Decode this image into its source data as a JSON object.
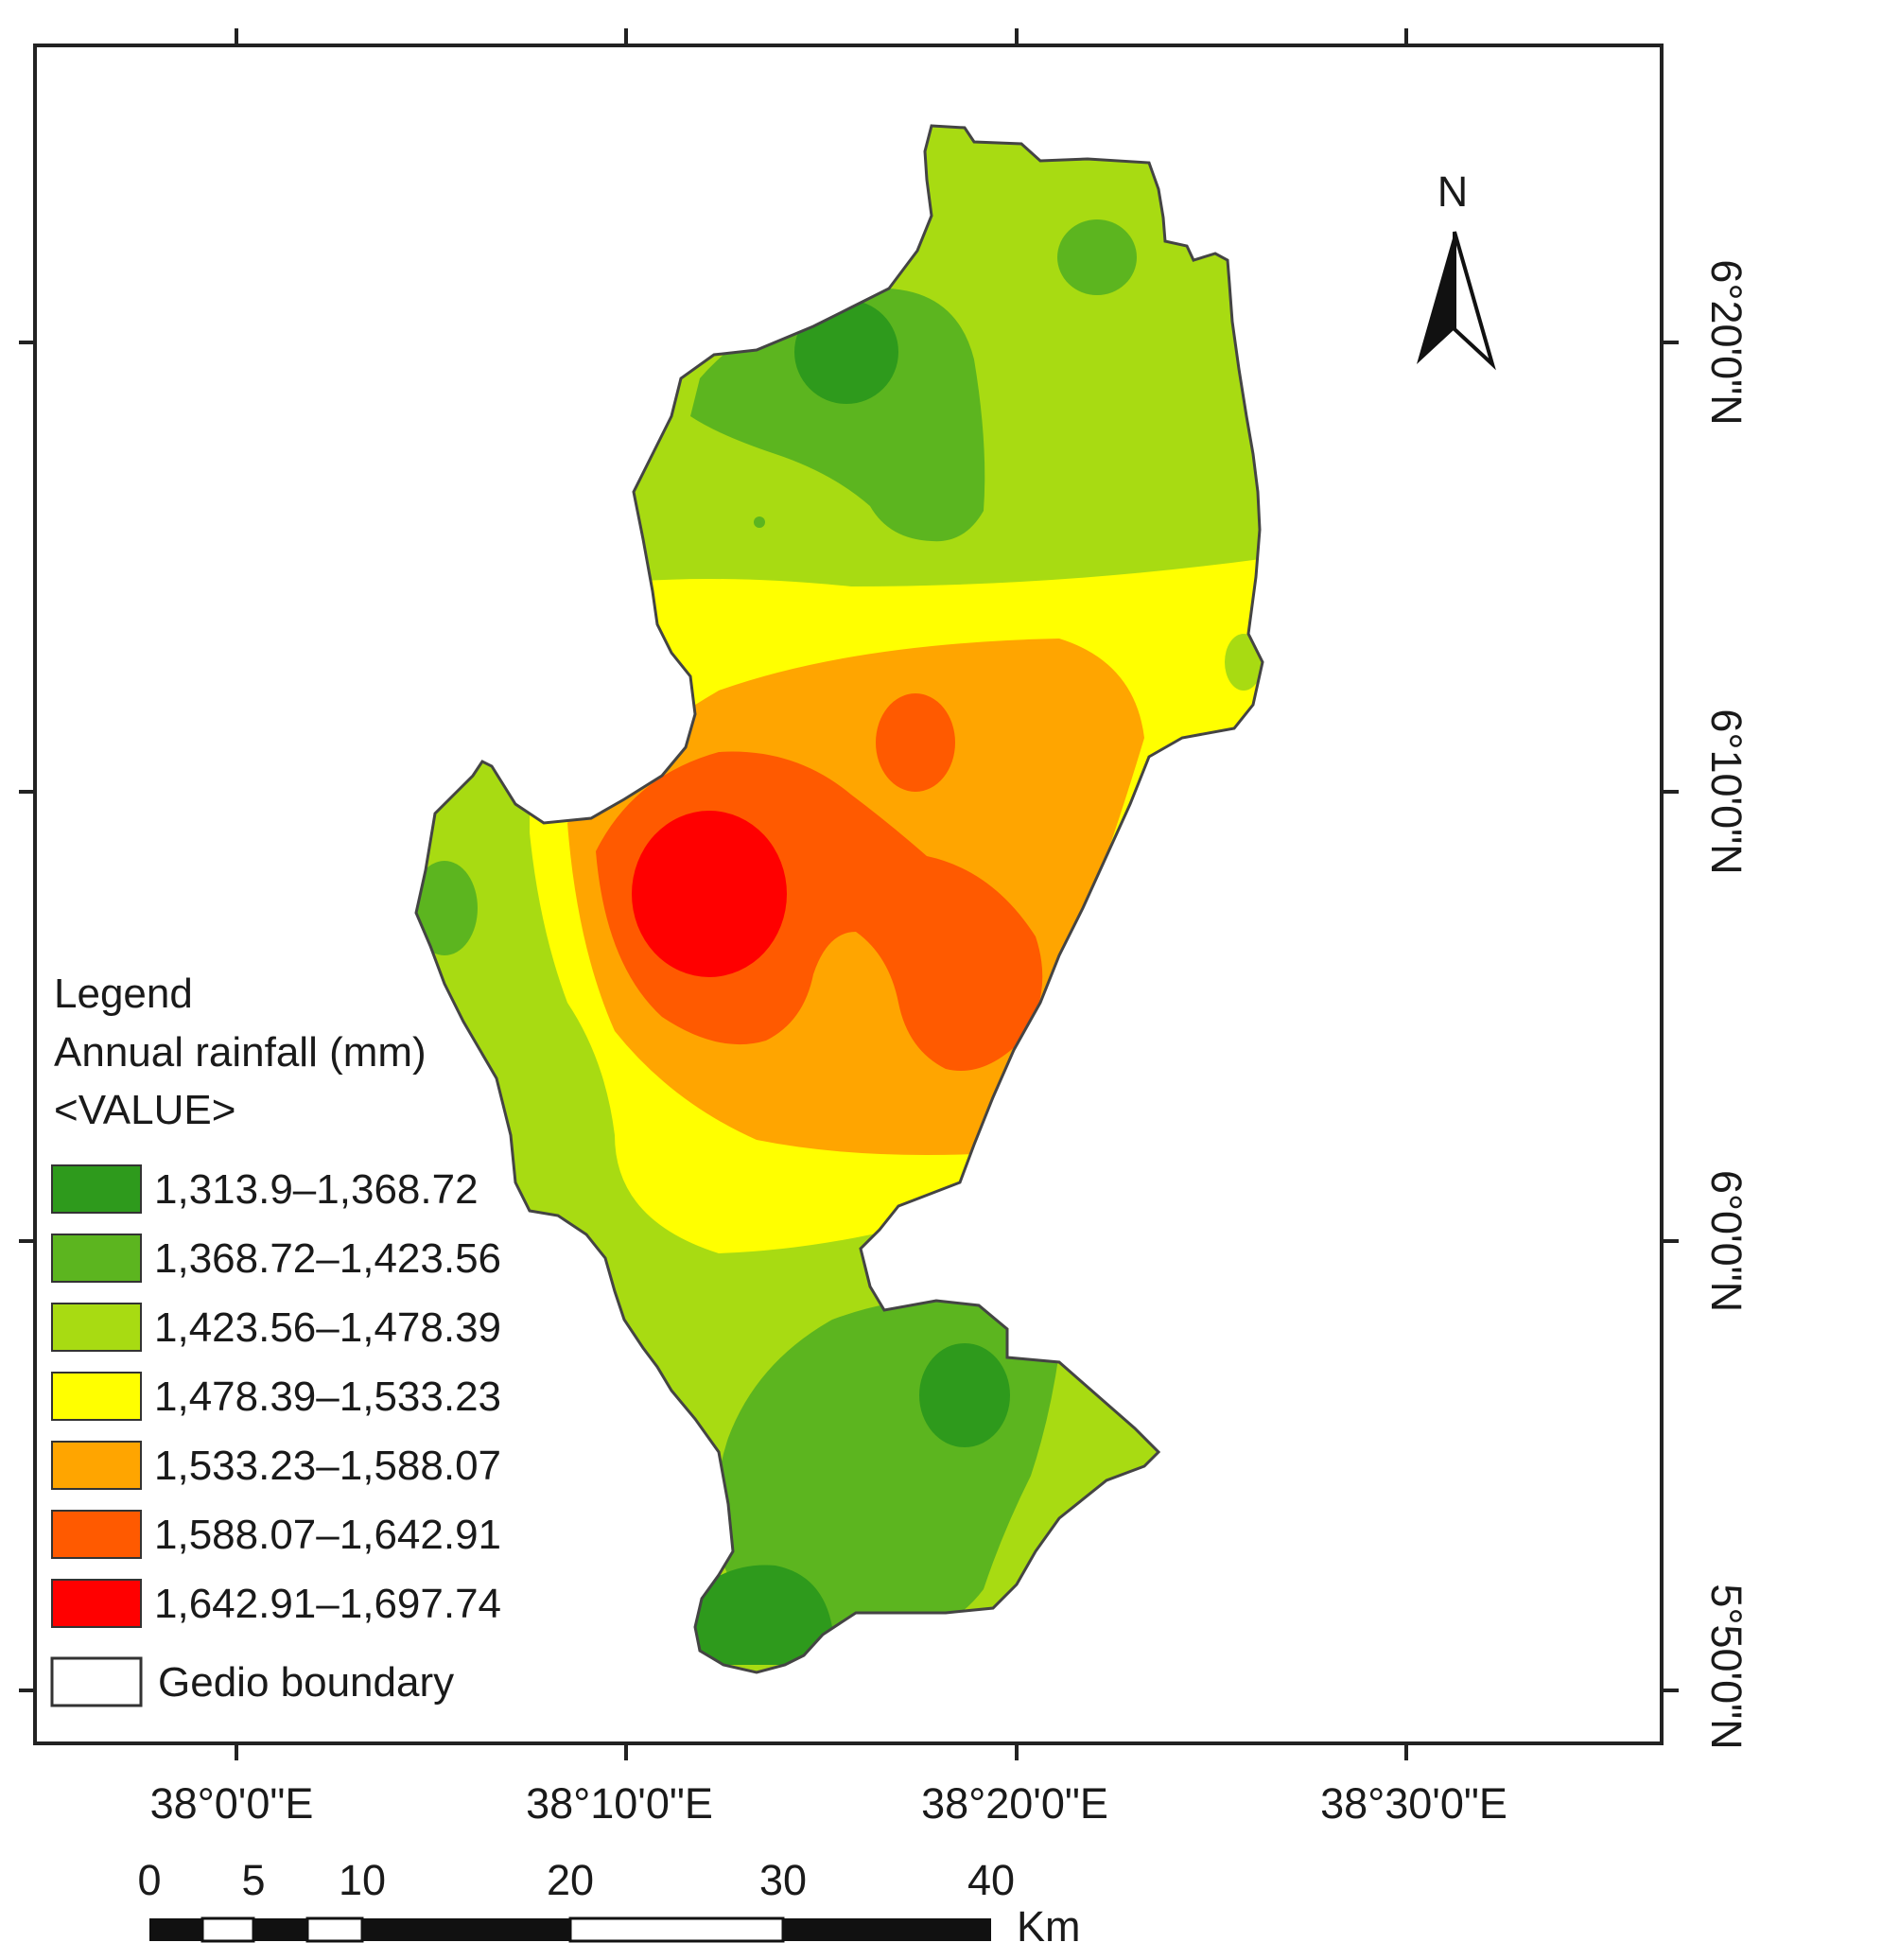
{
  "map": {
    "lon_labels": [
      "38°0'0\"E",
      "38°10'0\"E",
      "38°20'0\"E",
      "38°30'0\"E"
    ],
    "lat_labels": [
      "6°20'0\"N",
      "6°10'0\"N",
      "6°0'0\"N",
      "5°50'0\"N"
    ],
    "north_label": "N",
    "legend": {
      "heading": "Legend",
      "title": "Annual rainfall (mm)",
      "field": "<VALUE>",
      "classes": [
        {
          "label": "1,313.9–1,368.72",
          "color": "#2e9a1c"
        },
        {
          "label": "1,368.72–1,423.56",
          "color": "#5cb51f"
        },
        {
          "label": "1,423.56–1,478.39",
          "color": "#a8db12"
        },
        {
          "label": "1,478.39–1,533.23",
          "color": "#ffff00"
        },
        {
          "label": "1,533.23–1,588.07",
          "color": "#ffa500"
        },
        {
          "label": "1,588.07–1,642.91",
          "color": "#ff5a00"
        },
        {
          "label": "1,642.91–1,697.74",
          "color": "#ff0000"
        }
      ],
      "boundary_label": "Gedio boundary"
    },
    "scale_bar": {
      "ticks": [
        "0",
        "5",
        "10",
        "20",
        "30",
        "40"
      ],
      "unit": "Km"
    }
  }
}
